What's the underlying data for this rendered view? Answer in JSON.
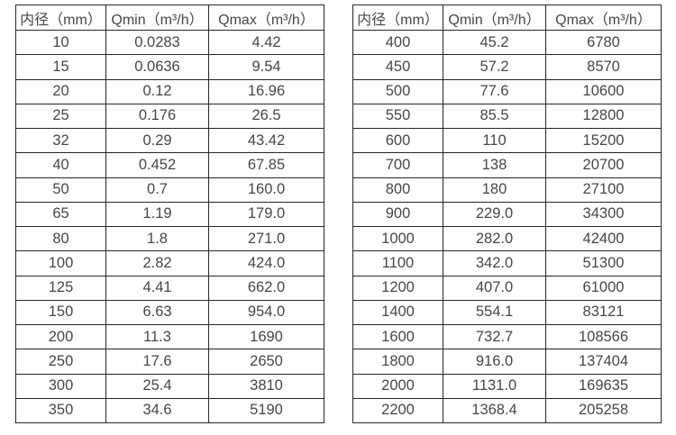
{
  "colors": {
    "background": "#ffffff",
    "text": "#474747",
    "border": "#262626"
  },
  "tables": [
    {
      "name": "flow-rates-small-diameters",
      "headers": [
        "内径（mm）",
        "Qmin（m³/h）",
        "Qmax（m³/h）"
      ],
      "rows": [
        [
          "10",
          "0.0283",
          "4.42"
        ],
        [
          "15",
          "0.0636",
          "9.54"
        ],
        [
          "20",
          "0.12",
          "16.96"
        ],
        [
          "25",
          "0.176",
          "26.5"
        ],
        [
          "32",
          "0.29",
          "43.42"
        ],
        [
          "40",
          "0.452",
          "67.85"
        ],
        [
          "50",
          "0.7",
          "160.0"
        ],
        [
          "65",
          "1.19",
          "179.0"
        ],
        [
          "80",
          "1.8",
          "271.0"
        ],
        [
          "100",
          "2.82",
          "424.0"
        ],
        [
          "125",
          "4.41",
          "662.0"
        ],
        [
          "150",
          "6.63",
          "954.0"
        ],
        [
          "200",
          "11.3",
          "1690"
        ],
        [
          "250",
          "17.6",
          "2650"
        ],
        [
          "300",
          "25.4",
          "3810"
        ],
        [
          "350",
          "34.6",
          "5190"
        ]
      ]
    },
    {
      "name": "flow-rates-large-diameters",
      "headers": [
        "内径（mm）",
        "Qmin（m³/h）",
        "Qmax（m³/h）"
      ],
      "rows": [
        [
          "400",
          "45.2",
          "6780"
        ],
        [
          "450",
          "57.2",
          "8570"
        ],
        [
          "500",
          "77.6",
          "10600"
        ],
        [
          "550",
          "85.5",
          "12800"
        ],
        [
          "600",
          "110",
          "15200"
        ],
        [
          "700",
          "138",
          "20700"
        ],
        [
          "800",
          "180",
          "27100"
        ],
        [
          "900",
          "229.0",
          "34300"
        ],
        [
          "1000",
          "282.0",
          "42400"
        ],
        [
          "1100",
          "342.0",
          "51300"
        ],
        [
          "1200",
          "407.0",
          "61000"
        ],
        [
          "1400",
          "554.1",
          "83121"
        ],
        [
          "1600",
          "732.7",
          "108566"
        ],
        [
          "1800",
          "916.0",
          "137404"
        ],
        [
          "2000",
          "1131.0",
          "169635"
        ],
        [
          "2200",
          "1368.4",
          "205258"
        ]
      ]
    }
  ]
}
